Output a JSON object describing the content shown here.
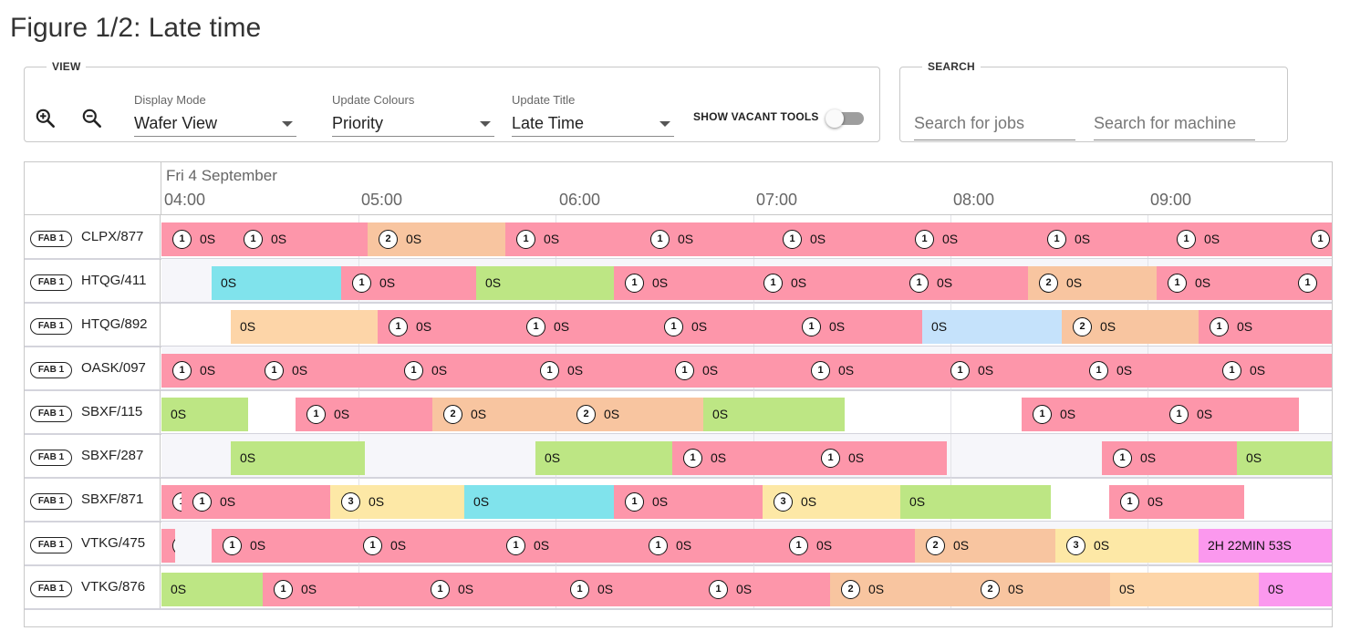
{
  "page": {
    "title": "Figure 1/2: Late time"
  },
  "view": {
    "legend": "VIEW",
    "zoom_in_icon": "zoom-in-icon",
    "zoom_out_icon": "zoom-out-icon",
    "display_mode": {
      "label": "Display Mode",
      "value": "Wafer View"
    },
    "update_colours": {
      "label": "Update Colours",
      "value": "Priority"
    },
    "update_title": {
      "label": "Update Title",
      "value": "Late Time"
    },
    "show_vacant": {
      "label": "SHOW VACANT TOOLS",
      "on": false
    }
  },
  "search": {
    "legend": "SEARCH",
    "jobs_placeholder": "Search for jobs",
    "machine_placeholder": "Search for machine"
  },
  "colors": {
    "priority_1": "#fd96aa",
    "priority_2": "#f8c5a0",
    "priority_3": "#fde8a6",
    "light_orange": "#fdd5a8",
    "green": "#bde684",
    "cyan": "#80e3ec",
    "light_blue": "#c5e2fb",
    "magenta": "#fb98ee"
  },
  "gantt": {
    "date": "Fri 4 September",
    "ticks": [
      "04:00",
      "05:00",
      "06:00",
      "07:00",
      "08:00",
      "09:00"
    ],
    "rows": [
      {
        "fab": "FAB 1",
        "machine": "CLPX/877",
        "jobs": [
          {
            "s": 0,
            "e": 78,
            "c": "priority_1",
            "b": "1",
            "t": "0S"
          },
          {
            "s": 78,
            "e": 226,
            "c": "priority_1",
            "b": "1",
            "t": "0S"
          },
          {
            "s": 226,
            "e": 377,
            "c": "priority_2",
            "b": "2",
            "t": "0S"
          },
          {
            "s": 377,
            "e": 524,
            "c": "priority_1",
            "b": "1",
            "t": "0S"
          },
          {
            "s": 524,
            "e": 669,
            "c": "priority_1",
            "b": "1",
            "t": "0S"
          },
          {
            "s": 669,
            "e": 814,
            "c": "priority_1",
            "b": "1",
            "t": "0S"
          },
          {
            "s": 814,
            "e": 959,
            "c": "priority_1",
            "b": "1",
            "t": "0S"
          },
          {
            "s": 959,
            "e": 1101,
            "c": "priority_1",
            "b": "1",
            "t": "0S"
          },
          {
            "s": 1101,
            "e": 1248,
            "c": "priority_1",
            "b": "1",
            "t": "0S"
          },
          {
            "s": 1248,
            "e": 1290,
            "c": "priority_1",
            "b": "1",
            "t": ""
          }
        ]
      },
      {
        "fab": "FAB 1",
        "machine": "HTQG/411",
        "jobs": [
          {
            "s": 55,
            "e": 197,
            "c": "cyan",
            "b": "",
            "t": "0S"
          },
          {
            "s": 197,
            "e": 345,
            "c": "priority_1",
            "b": "1",
            "t": "0S"
          },
          {
            "s": 345,
            "e": 496,
            "c": "green",
            "b": "",
            "t": "0S"
          },
          {
            "s": 496,
            "e": 648,
            "c": "priority_1",
            "b": "1",
            "t": "0S"
          },
          {
            "s": 648,
            "e": 808,
            "c": "priority_1",
            "b": "1",
            "t": "0S"
          },
          {
            "s": 808,
            "e": 950,
            "c": "priority_1",
            "b": "1",
            "t": "0S"
          },
          {
            "s": 950,
            "e": 1091,
            "c": "priority_2",
            "b": "2",
            "t": "0S"
          },
          {
            "s": 1091,
            "e": 1234,
            "c": "priority_1",
            "b": "1",
            "t": "0S"
          },
          {
            "s": 1234,
            "e": 1290,
            "c": "priority_1",
            "b": "1",
            "t": ""
          }
        ]
      },
      {
        "fab": "FAB 1",
        "machine": "HTQG/892",
        "jobs": [
          {
            "s": 76,
            "e": 237,
            "c": "light_orange",
            "b": "",
            "t": "0S"
          },
          {
            "s": 237,
            "e": 388,
            "c": "priority_1",
            "b": "1",
            "t": "0S"
          },
          {
            "s": 388,
            "e": 539,
            "c": "priority_1",
            "b": "1",
            "t": "0S"
          },
          {
            "s": 539,
            "e": 690,
            "c": "priority_1",
            "b": "1",
            "t": "0S"
          },
          {
            "s": 690,
            "e": 834,
            "c": "priority_1",
            "b": "1",
            "t": "0S"
          },
          {
            "s": 834,
            "e": 987,
            "c": "light_blue",
            "b": "",
            "t": "0S"
          },
          {
            "s": 987,
            "e": 1137,
            "c": "priority_2",
            "b": "2",
            "t": "0S"
          },
          {
            "s": 1137,
            "e": 1290,
            "c": "priority_1",
            "b": "1",
            "t": "0S"
          }
        ]
      },
      {
        "fab": "FAB 1",
        "machine": "OASK/097",
        "jobs": [
          {
            "s": 0,
            "e": 101,
            "c": "priority_1",
            "b": "1",
            "t": "0S"
          },
          {
            "s": 101,
            "e": 254,
            "c": "priority_1",
            "b": "1",
            "t": "0S"
          },
          {
            "s": 254,
            "e": 403,
            "c": "priority_1",
            "b": "1",
            "t": "0S"
          },
          {
            "s": 403,
            "e": 551,
            "c": "priority_1",
            "b": "1",
            "t": "0S"
          },
          {
            "s": 551,
            "e": 700,
            "c": "priority_1",
            "b": "1",
            "t": "0S"
          },
          {
            "s": 700,
            "e": 853,
            "c": "priority_1",
            "b": "1",
            "t": "0S"
          },
          {
            "s": 853,
            "e": 1005,
            "c": "priority_1",
            "b": "1",
            "t": "0S"
          },
          {
            "s": 1005,
            "e": 1151,
            "c": "priority_1",
            "b": "1",
            "t": "0S"
          },
          {
            "s": 1151,
            "e": 1290,
            "c": "priority_1",
            "b": "1",
            "t": "0S"
          }
        ]
      },
      {
        "fab": "FAB 1",
        "machine": "SBXF/115",
        "jobs": [
          {
            "s": 0,
            "e": 95,
            "c": "green",
            "b": "",
            "t": "0S"
          },
          {
            "s": 147,
            "e": 297,
            "c": "priority_1",
            "b": "1",
            "t": "0S"
          },
          {
            "s": 297,
            "e": 443,
            "c": "priority_2",
            "b": "2",
            "t": "0S"
          },
          {
            "s": 443,
            "e": 594,
            "c": "priority_2",
            "b": "2",
            "t": "0S"
          },
          {
            "s": 594,
            "e": 749,
            "c": "green",
            "b": "",
            "t": "0S"
          },
          {
            "s": 943,
            "e": 1093,
            "c": "priority_1",
            "b": "1",
            "t": "0S"
          },
          {
            "s": 1093,
            "e": 1247,
            "c": "priority_1",
            "b": "1",
            "t": "0S"
          }
        ]
      },
      {
        "fab": "FAB 1",
        "machine": "SBXF/287",
        "jobs": [
          {
            "s": 76,
            "e": 223,
            "c": "green",
            "b": "",
            "t": "0S"
          },
          {
            "s": 410,
            "e": 560,
            "c": "green",
            "b": "",
            "t": "0S"
          },
          {
            "s": 560,
            "e": 711,
            "c": "priority_1",
            "b": "1",
            "t": "0S"
          },
          {
            "s": 711,
            "e": 861,
            "c": "priority_1",
            "b": "1",
            "t": "0S"
          },
          {
            "s": 1031,
            "e": 1179,
            "c": "priority_1",
            "b": "1",
            "t": "0S"
          },
          {
            "s": 1179,
            "e": 1290,
            "c": "green",
            "b": "",
            "t": "0S"
          }
        ]
      },
      {
        "fab": "FAB 1",
        "machine": "SBXF/871",
        "jobs": [
          {
            "s": 0,
            "e": 22,
            "c": "priority_1",
            "b": "1",
            "t": ""
          },
          {
            "s": 22,
            "e": 185,
            "c": "priority_1",
            "b": "1",
            "t": "0S"
          },
          {
            "s": 185,
            "e": 332,
            "c": "priority_3",
            "b": "3",
            "t": "0S"
          },
          {
            "s": 332,
            "e": 496,
            "c": "cyan",
            "b": "",
            "t": "0S"
          },
          {
            "s": 496,
            "e": 659,
            "c": "priority_1",
            "b": "1",
            "t": "0S"
          },
          {
            "s": 659,
            "e": 810,
            "c": "priority_3",
            "b": "3",
            "t": "0S"
          },
          {
            "s": 810,
            "e": 975,
            "c": "green",
            "b": "",
            "t": "0S"
          },
          {
            "s": 1039,
            "e": 1187,
            "c": "priority_1",
            "b": "1",
            "t": "0S"
          }
        ]
      },
      {
        "fab": "FAB 1",
        "machine": "VTKG/475",
        "jobs": [
          {
            "s": 0,
            "e": 15,
            "c": "priority_1",
            "b": "1",
            "t": ""
          },
          {
            "s": 55,
            "e": 209,
            "c": "priority_1",
            "b": "1",
            "t": "0S"
          },
          {
            "s": 209,
            "e": 366,
            "c": "priority_1",
            "b": "1",
            "t": "0S"
          },
          {
            "s": 366,
            "e": 522,
            "c": "priority_1",
            "b": "1",
            "t": "0S"
          },
          {
            "s": 522,
            "e": 676,
            "c": "priority_1",
            "b": "1",
            "t": "0S"
          },
          {
            "s": 676,
            "e": 826,
            "c": "priority_1",
            "b": "1",
            "t": "0S"
          },
          {
            "s": 826,
            "e": 980,
            "c": "priority_2",
            "b": "2",
            "t": "0S"
          },
          {
            "s": 980,
            "e": 1137,
            "c": "priority_3",
            "b": "3",
            "t": "0S"
          },
          {
            "s": 1137,
            "e": 1290,
            "c": "magenta",
            "b": "",
            "t": "2H 22MIN 53S"
          }
        ]
      },
      {
        "fab": "FAB 1",
        "machine": "VTKG/876",
        "jobs": [
          {
            "s": 0,
            "e": 111,
            "c": "green",
            "b": "",
            "t": "0S"
          },
          {
            "s": 111,
            "e": 283,
            "c": "priority_1",
            "b": "1",
            "t": "0S"
          },
          {
            "s": 283,
            "e": 436,
            "c": "priority_1",
            "b": "1",
            "t": "0S"
          },
          {
            "s": 436,
            "e": 588,
            "c": "priority_1",
            "b": "1",
            "t": "0S"
          },
          {
            "s": 588,
            "e": 733,
            "c": "priority_1",
            "b": "1",
            "t": "0S"
          },
          {
            "s": 733,
            "e": 886,
            "c": "priority_2",
            "b": "2",
            "t": "0S"
          },
          {
            "s": 886,
            "e": 1040,
            "c": "priority_2",
            "b": "2",
            "t": "0S"
          },
          {
            "s": 1040,
            "e": 1203,
            "c": "light_orange",
            "b": "",
            "t": "0S"
          },
          {
            "s": 1203,
            "e": 1290,
            "c": "magenta",
            "b": "",
            "t": "0S"
          }
        ]
      }
    ]
  }
}
